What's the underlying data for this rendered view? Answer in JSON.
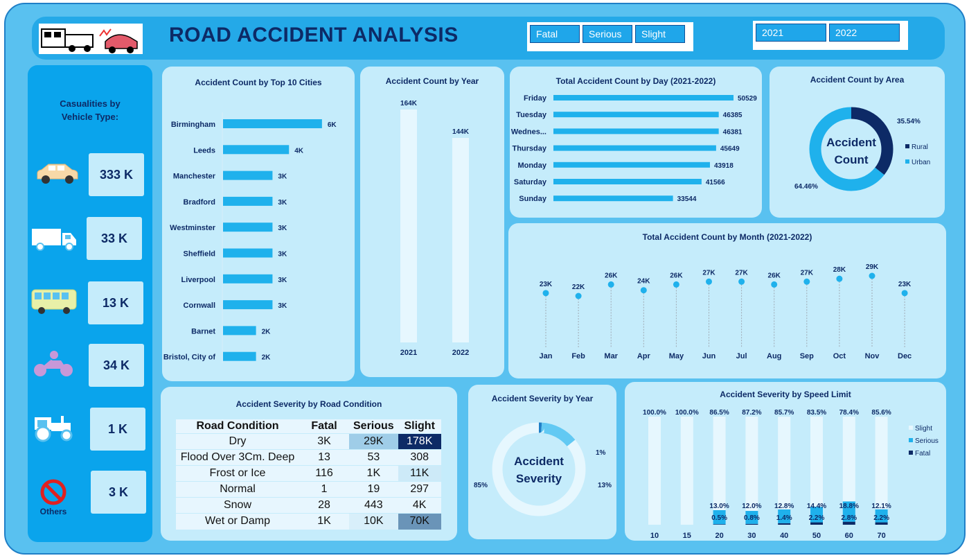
{
  "header": {
    "title": "ROAD ACCIDENT ANALYSIS",
    "severity_filters": [
      "Fatal",
      "Serious",
      "Slight"
    ],
    "year_filters": [
      "2021",
      "2022"
    ]
  },
  "vehicle_casualties": {
    "title_line1": "Casualities by",
    "title_line2": "Vehicle Type:",
    "items": [
      {
        "icon": "car-icon",
        "value": "333 K"
      },
      {
        "icon": "truck-icon",
        "value": "33 K"
      },
      {
        "icon": "bus-icon",
        "value": "13 K"
      },
      {
        "icon": "motorcycle-icon",
        "value": "34 K"
      },
      {
        "icon": "tractor-icon",
        "value": "1 K"
      },
      {
        "icon": "prohibited-icon",
        "value": "3 K"
      }
    ],
    "others_label": "Others"
  },
  "colors": {
    "accent": "#1fb1ec",
    "dark": "#0d2a66",
    "light": "#e6f7fe"
  },
  "chart_data": [
    {
      "id": "cities",
      "type": "bar",
      "orientation": "horizontal",
      "title": "Accident  Count by Top 10 Cities",
      "categories": [
        "Birmingham",
        "Leeds",
        "Manchester",
        "Bradford",
        "Westminster",
        "Sheffield",
        "Liverpool",
        "Cornwall",
        "Barnet",
        "Bristol, City of"
      ],
      "values": [
        6,
        4,
        3,
        3,
        3,
        3,
        3,
        3,
        2,
        2
      ],
      "value_labels": [
        "6K",
        "4K",
        "3K",
        "3K",
        "3K",
        "3K",
        "3K",
        "3K",
        "2K",
        "2K"
      ],
      "xlim": [
        0,
        7
      ]
    },
    {
      "id": "year",
      "type": "bar",
      "title": "Accident Count  by Year",
      "categories": [
        "2021",
        "2022"
      ],
      "values": [
        164,
        144
      ],
      "value_labels": [
        "164K",
        "144K"
      ],
      "ylim": [
        0,
        175
      ]
    },
    {
      "id": "day",
      "type": "bar",
      "orientation": "horizontal",
      "title": "Total Accident Count  by Day (2021-2022)",
      "categories": [
        "Friday",
        "Tuesday",
        "Wednes...",
        "Thursday",
        "Monday",
        "Saturday",
        "Sunday"
      ],
      "values": [
        50529,
        46385,
        46381,
        45649,
        43918,
        41566,
        33544
      ],
      "value_labels": [
        "50529",
        "46385",
        "46381",
        "45649",
        "43918",
        "41566",
        "33544"
      ],
      "xlim": [
        0,
        52000
      ]
    },
    {
      "id": "area",
      "type": "pie",
      "title": "Accident Count  by Area",
      "center_label_line1": "Accident",
      "center_label_line2": "Count",
      "categories": [
        "Rural",
        "Urban"
      ],
      "values": [
        35.54,
        64.46
      ],
      "value_labels": [
        "35.54%",
        "64.46%"
      ],
      "legend": "right"
    },
    {
      "id": "month",
      "type": "line",
      "title": "Total Accident Count  by Month (2021-2022)",
      "categories": [
        "Jan",
        "Feb",
        "Mar",
        "Apr",
        "May",
        "Jun",
        "Jul",
        "Aug",
        "Sep",
        "Oct",
        "Nov",
        "Dec"
      ],
      "values": [
        23,
        22,
        26,
        24,
        26,
        27,
        27,
        26,
        27,
        28,
        29,
        23
      ],
      "value_labels": [
        "23K",
        "22K",
        "26K",
        "24K",
        "26K",
        "27K",
        "27K",
        "26K",
        "27K",
        "28K",
        "29K",
        "23K"
      ],
      "ylim": [
        0,
        32
      ]
    },
    {
      "id": "road_condition",
      "type": "table",
      "title": "Accident Severity by Road Condition",
      "columns": [
        "Road Condition",
        "Fatal",
        "Serious",
        "Slight"
      ],
      "rows": [
        [
          "Dry",
          "3K",
          "29K",
          "178K"
        ],
        [
          "Flood Over 3Cm. Deep",
          "13",
          "53",
          "308"
        ],
        [
          "Frost or Ice",
          "116",
          "1K",
          "11K"
        ],
        [
          "Normal",
          "1",
          "19",
          "297"
        ],
        [
          "Snow",
          "28",
          "443",
          "4K"
        ],
        [
          "Wet or Damp",
          "1K",
          "10K",
          "70K"
        ]
      ]
    },
    {
      "id": "severity_year",
      "type": "pie",
      "title": "Accident Severity  by Year",
      "center_label_line1": "Accident",
      "center_label_line2": "Severity",
      "categories": [
        "Slight",
        "Serious",
        "Fatal"
      ],
      "values": [
        85,
        13,
        1
      ],
      "value_labels": [
        "85%",
        "13%",
        "1%"
      ]
    },
    {
      "id": "speed",
      "type": "bar",
      "stacked": true,
      "title": "Accident Severity by Speed Limit",
      "categories": [
        "10",
        "15",
        "20",
        "30",
        "40",
        "50",
        "60",
        "70"
      ],
      "series": [
        {
          "name": "Slight",
          "values": [
            100.0,
            100.0,
            86.5,
            87.2,
            85.7,
            83.5,
            78.4,
            85.6
          ],
          "labels": [
            "100.0%",
            "100.0%",
            "86.5%",
            "87.2%",
            "85.7%",
            "83.5%",
            "78.4%",
            "85.6%"
          ]
        },
        {
          "name": "Serious",
          "values": [
            0,
            0,
            13.0,
            12.0,
            12.8,
            14.4,
            18.8,
            12.1
          ],
          "labels": [
            "",
            "",
            "13.0%",
            "12.0%",
            "12.8%",
            "14.4%",
            "18.8%",
            "12.1%"
          ]
        },
        {
          "name": "Fatal",
          "values": [
            0,
            0,
            0.5,
            0.8,
            1.4,
            2.2,
            2.8,
            2.2
          ],
          "labels": [
            "",
            "",
            "0.5%",
            "0.8%",
            "1.4%",
            "2.2%",
            "2.8%",
            "2.2%"
          ]
        }
      ],
      "ylim": [
        0,
        100
      ],
      "legend": "right"
    }
  ]
}
